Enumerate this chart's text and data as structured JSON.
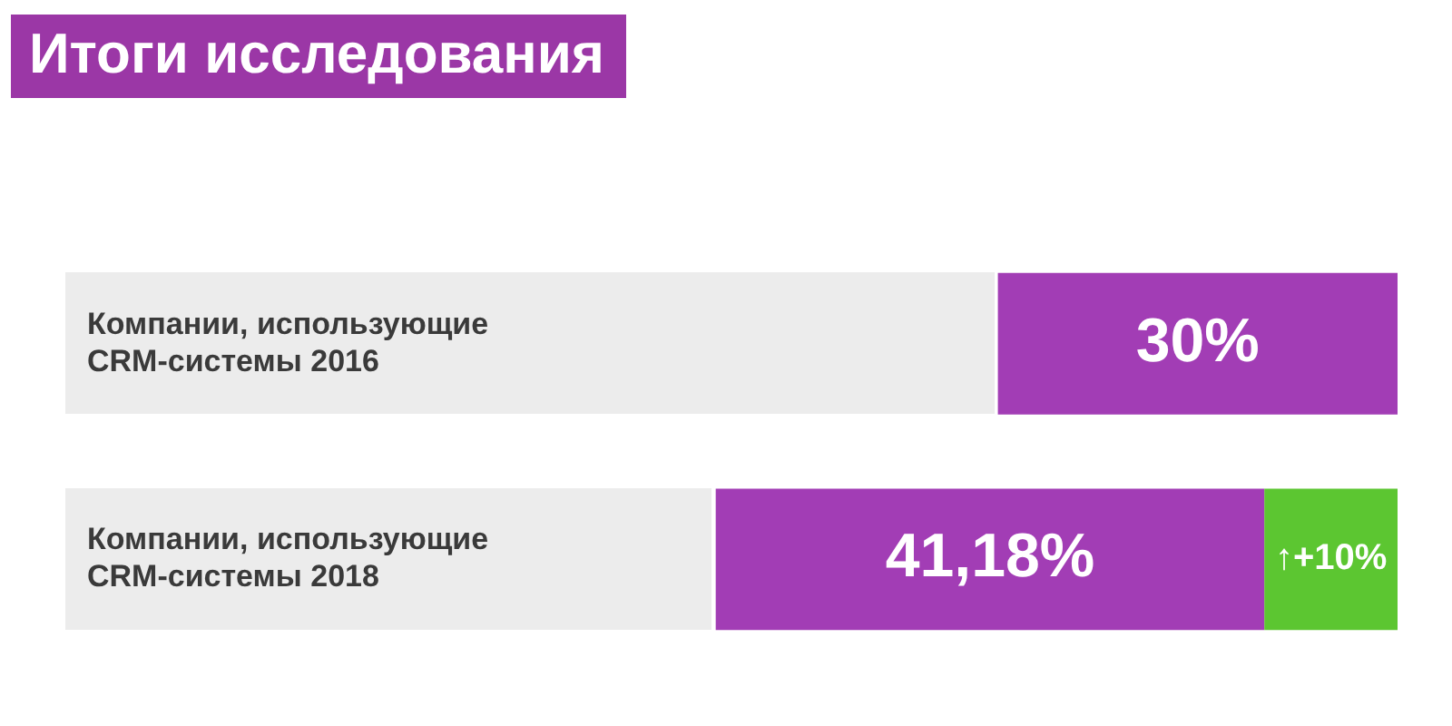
{
  "chart_data": {
    "type": "bar",
    "title": "Итоги исследования",
    "orientation": "horizontal",
    "stacked": true,
    "categories": [
      "Компании, использующие CRM-системы 2016",
      "Компании, использующие CRM-системы 2018"
    ],
    "series": [
      {
        "color": "#5cc631",
        "values": [
          null,
          10
        ],
        "value_labels": [
          null,
          "↑+10%"
        ]
      },
      {
        "color": "#a23db5",
        "values": [
          30,
          41.18
        ],
        "value_labels": [
          "30%",
          "41,18%"
        ]
      }
    ],
    "xlim": [
      100,
      0
    ],
    "tick_labels": "y",
    "grid": false,
    "legend": false
  }
}
